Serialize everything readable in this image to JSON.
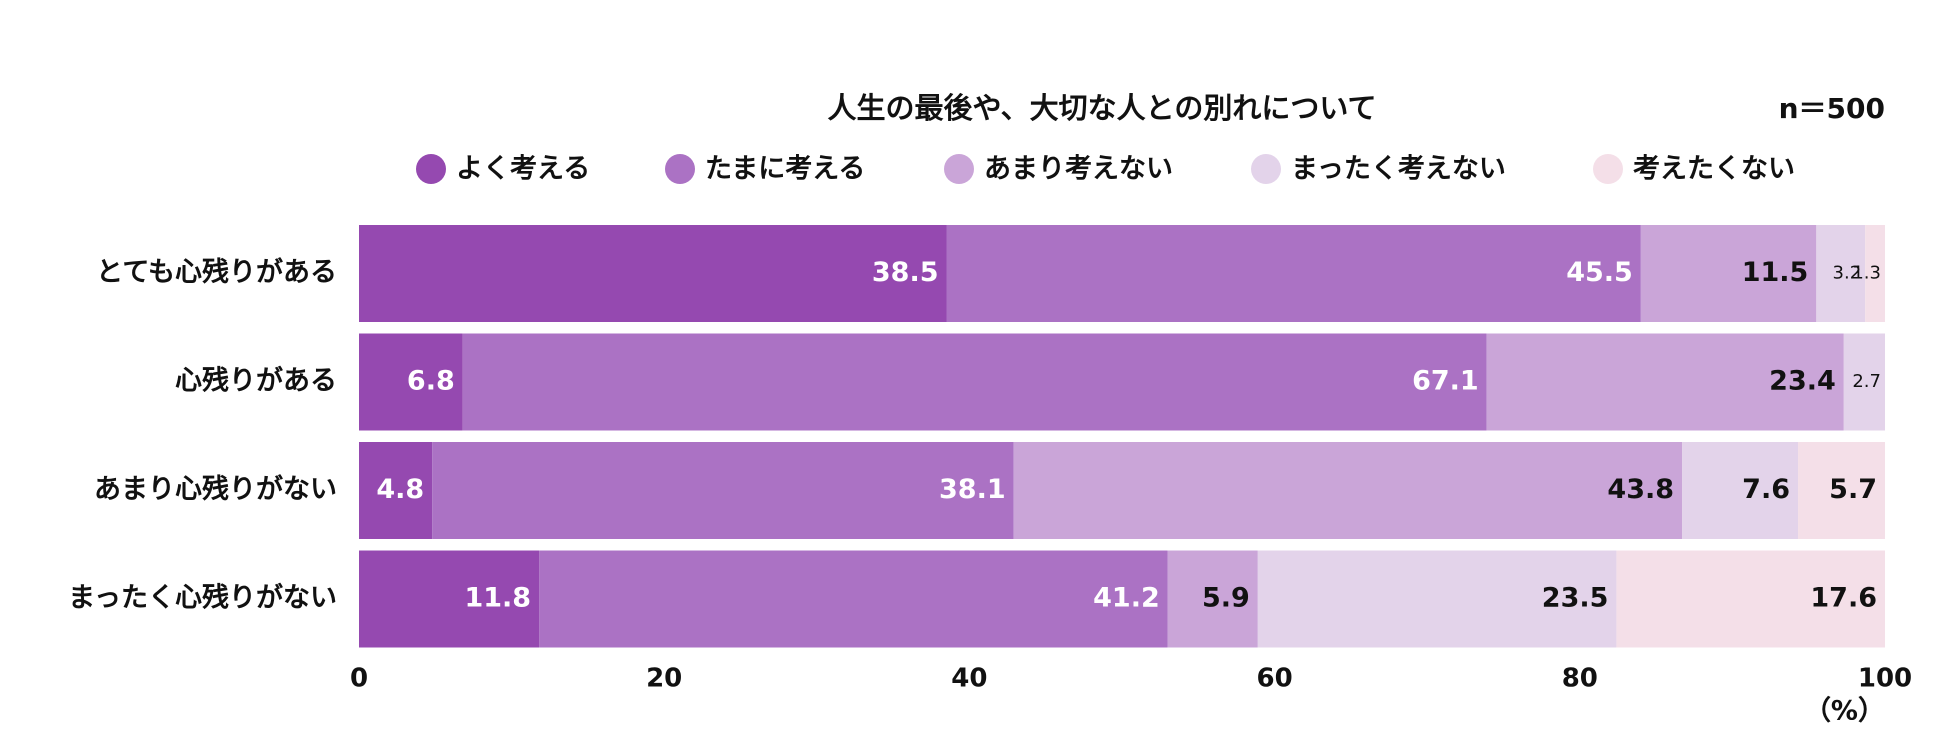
{
  "chart_data": {
    "type": "bar",
    "orientation": "horizontal",
    "stacked": true,
    "title": "人生の最後や、大切な人との別れについて",
    "annotation": "n＝500",
    "x_label": "（%）",
    "categories": [
      "とても心残りがある",
      "心残りがある",
      "あまり心残りがない",
      "まったく心残りがない"
    ],
    "series": [
      {
        "name": "よく考える",
        "color": "#9549b0",
        "values": [
          38.5,
          6.8,
          4.8,
          11.8
        ]
      },
      {
        "name": "たまに考える",
        "color": "#ab72c4",
        "values": [
          45.5,
          67.1,
          38.1,
          41.2
        ]
      },
      {
        "name": "あまり考えない",
        "color": "#caa5d8",
        "values": [
          11.5,
          23.4,
          43.8,
          5.9
        ]
      },
      {
        "name": "まったく考えない",
        "color": "#e3d3ea",
        "values": [
          3.2,
          2.7,
          7.6,
          23.5
        ]
      },
      {
        "name": "考えたくない",
        "color": "#f4dfe8",
        "values": [
          1.3,
          null,
          5.7,
          17.6
        ]
      }
    ],
    "xlim": [
      0,
      100
    ],
    "xticks": [
      0,
      20,
      40,
      60,
      80,
      100
    ]
  }
}
